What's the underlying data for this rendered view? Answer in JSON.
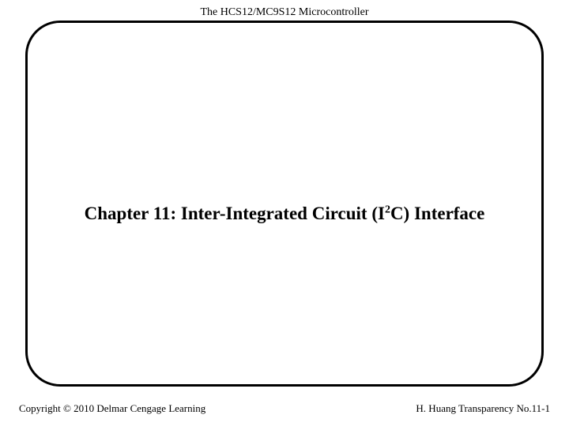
{
  "header": {
    "text": "The HCS12/MC9S12 Microcontroller"
  },
  "title": {
    "prefix": "Chapter 11: Inter-Integrated Circuit (I",
    "superscript": "2",
    "suffix": "C) Interface"
  },
  "footer": {
    "left": "Copyright © 2010 Delmar Cengage Learning",
    "right": "H. Huang Transparency No.11-1"
  },
  "style": {
    "background_color": "#ffffff",
    "border_color": "#000000",
    "text_color": "#000000",
    "header_fontsize": 14,
    "title_fontsize": 23,
    "footer_fontsize": 13,
    "border_width": 3,
    "border_radius": 44
  }
}
